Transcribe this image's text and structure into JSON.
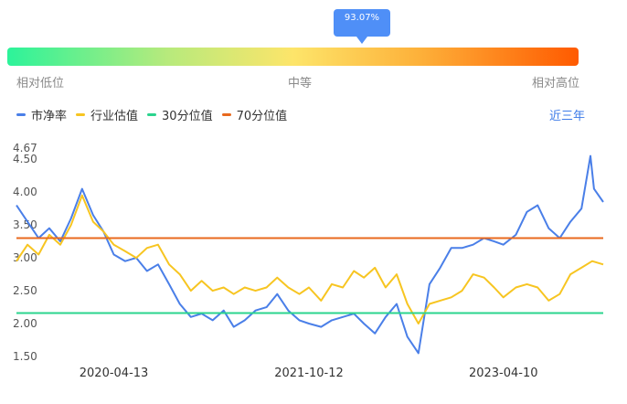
{
  "gauge": {
    "current_label": "93.07%",
    "current_percentile": 93.07,
    "low_label": "相对低位",
    "mid_label": "中等",
    "high_label": "相对高位"
  },
  "legend": [
    {
      "label": "市净率",
      "color": "#4a7fe8"
    },
    {
      "label": "行业估值",
      "color": "#f7c521"
    },
    {
      "label": "30分位值",
      "color": "#2bd48e"
    },
    {
      "label": "70分位值",
      "color": "#e8691e"
    }
  ],
  "range_label": "近三年",
  "chart_data": {
    "type": "line",
    "y_ticks": [
      "1.50",
      "2.00",
      "2.50",
      "3.00",
      "3.50",
      "4.00",
      "4.50",
      "4.67"
    ],
    "ylim": [
      1.5,
      4.67
    ],
    "x_ticks": [
      "2020-04-13",
      "2021-10-12",
      "2023-04-10"
    ],
    "x_range": [
      "2019-07-15",
      "2024-01-15"
    ],
    "series": [
      {
        "name": "市净率",
        "color": "#4a7fe8",
        "points": [
          [
            "2019-07-15",
            3.8
          ],
          [
            "2019-08-15",
            3.55
          ],
          [
            "2019-09-15",
            3.3
          ],
          [
            "2019-10-15",
            3.45
          ],
          [
            "2019-11-15",
            3.25
          ],
          [
            "2019-12-15",
            3.6
          ],
          [
            "2020-01-15",
            4.05
          ],
          [
            "2020-02-15",
            3.65
          ],
          [
            "2020-03-15",
            3.4
          ],
          [
            "2020-04-13",
            3.05
          ],
          [
            "2020-05-15",
            2.95
          ],
          [
            "2020-06-15",
            3.0
          ],
          [
            "2020-07-15",
            2.8
          ],
          [
            "2020-08-15",
            2.9
          ],
          [
            "2020-09-15",
            2.6
          ],
          [
            "2020-10-15",
            2.3
          ],
          [
            "2020-11-15",
            2.1
          ],
          [
            "2020-12-15",
            2.15
          ],
          [
            "2021-01-15",
            2.05
          ],
          [
            "2021-02-15",
            2.2
          ],
          [
            "2021-03-15",
            1.95
          ],
          [
            "2021-04-15",
            2.05
          ],
          [
            "2021-05-15",
            2.2
          ],
          [
            "2021-06-15",
            2.25
          ],
          [
            "2021-07-15",
            2.45
          ],
          [
            "2021-08-15",
            2.2
          ],
          [
            "2021-09-15",
            2.05
          ],
          [
            "2021-10-12",
            2.0
          ],
          [
            "2021-11-15",
            1.95
          ],
          [
            "2021-12-15",
            2.05
          ],
          [
            "2022-01-15",
            2.1
          ],
          [
            "2022-02-15",
            2.15
          ],
          [
            "2022-03-15",
            2.0
          ],
          [
            "2022-04-15",
            1.85
          ],
          [
            "2022-05-15",
            2.1
          ],
          [
            "2022-06-15",
            2.3
          ],
          [
            "2022-07-15",
            1.8
          ],
          [
            "2022-08-15",
            1.55
          ],
          [
            "2022-09-15",
            2.6
          ],
          [
            "2022-10-15",
            2.85
          ],
          [
            "2022-11-15",
            3.15
          ],
          [
            "2022-12-15",
            3.15
          ],
          [
            "2023-01-15",
            3.2
          ],
          [
            "2023-02-15",
            3.3
          ],
          [
            "2023-03-15",
            3.25
          ],
          [
            "2023-04-10",
            3.2
          ],
          [
            "2023-05-15",
            3.35
          ],
          [
            "2023-06-15",
            3.7
          ],
          [
            "2023-07-15",
            3.8
          ],
          [
            "2023-08-15",
            3.45
          ],
          [
            "2023-09-15",
            3.3
          ],
          [
            "2023-10-15",
            3.55
          ],
          [
            "2023-11-15",
            3.75
          ],
          [
            "2023-12-10",
            4.55
          ],
          [
            "2023-12-20",
            4.05
          ],
          [
            "2024-01-15",
            3.85
          ]
        ]
      },
      {
        "name": "行业估值",
        "color": "#f7c521",
        "points": [
          [
            "2019-07-15",
            2.95
          ],
          [
            "2019-08-15",
            3.2
          ],
          [
            "2019-09-15",
            3.05
          ],
          [
            "2019-10-15",
            3.35
          ],
          [
            "2019-11-15",
            3.2
          ],
          [
            "2019-12-15",
            3.5
          ],
          [
            "2020-01-15",
            3.95
          ],
          [
            "2020-02-15",
            3.55
          ],
          [
            "2020-03-15",
            3.4
          ],
          [
            "2020-04-13",
            3.2
          ],
          [
            "2020-05-15",
            3.1
          ],
          [
            "2020-06-15",
            3.0
          ],
          [
            "2020-07-15",
            3.15
          ],
          [
            "2020-08-15",
            3.2
          ],
          [
            "2020-09-15",
            2.9
          ],
          [
            "2020-10-15",
            2.75
          ],
          [
            "2020-11-15",
            2.5
          ],
          [
            "2020-12-15",
            2.65
          ],
          [
            "2021-01-15",
            2.5
          ],
          [
            "2021-02-15",
            2.55
          ],
          [
            "2021-03-15",
            2.45
          ],
          [
            "2021-04-15",
            2.55
          ],
          [
            "2021-05-15",
            2.5
          ],
          [
            "2021-06-15",
            2.55
          ],
          [
            "2021-07-15",
            2.7
          ],
          [
            "2021-08-15",
            2.55
          ],
          [
            "2021-09-15",
            2.45
          ],
          [
            "2021-10-12",
            2.55
          ],
          [
            "2021-11-15",
            2.35
          ],
          [
            "2021-12-15",
            2.6
          ],
          [
            "2022-01-15",
            2.55
          ],
          [
            "2022-02-15",
            2.8
          ],
          [
            "2022-03-15",
            2.7
          ],
          [
            "2022-04-15",
            2.85
          ],
          [
            "2022-05-15",
            2.55
          ],
          [
            "2022-06-15",
            2.75
          ],
          [
            "2022-07-15",
            2.3
          ],
          [
            "2022-08-15",
            2.0
          ],
          [
            "2022-09-15",
            2.3
          ],
          [
            "2022-10-15",
            2.35
          ],
          [
            "2022-11-15",
            2.4
          ],
          [
            "2022-12-15",
            2.5
          ],
          [
            "2023-01-15",
            2.75
          ],
          [
            "2023-02-15",
            2.7
          ],
          [
            "2023-03-15",
            2.55
          ],
          [
            "2023-04-10",
            2.4
          ],
          [
            "2023-05-15",
            2.55
          ],
          [
            "2023-06-15",
            2.6
          ],
          [
            "2023-07-15",
            2.55
          ],
          [
            "2023-08-15",
            2.35
          ],
          [
            "2023-09-15",
            2.45
          ],
          [
            "2023-10-15",
            2.75
          ],
          [
            "2023-11-15",
            2.85
          ],
          [
            "2023-12-15",
            2.95
          ],
          [
            "2024-01-15",
            2.9
          ]
        ]
      },
      {
        "name": "30分位值",
        "color": "#2bd48e",
        "constant": 2.16
      },
      {
        "name": "70分位值",
        "color": "#e8691e",
        "constant": 3.3
      }
    ]
  }
}
